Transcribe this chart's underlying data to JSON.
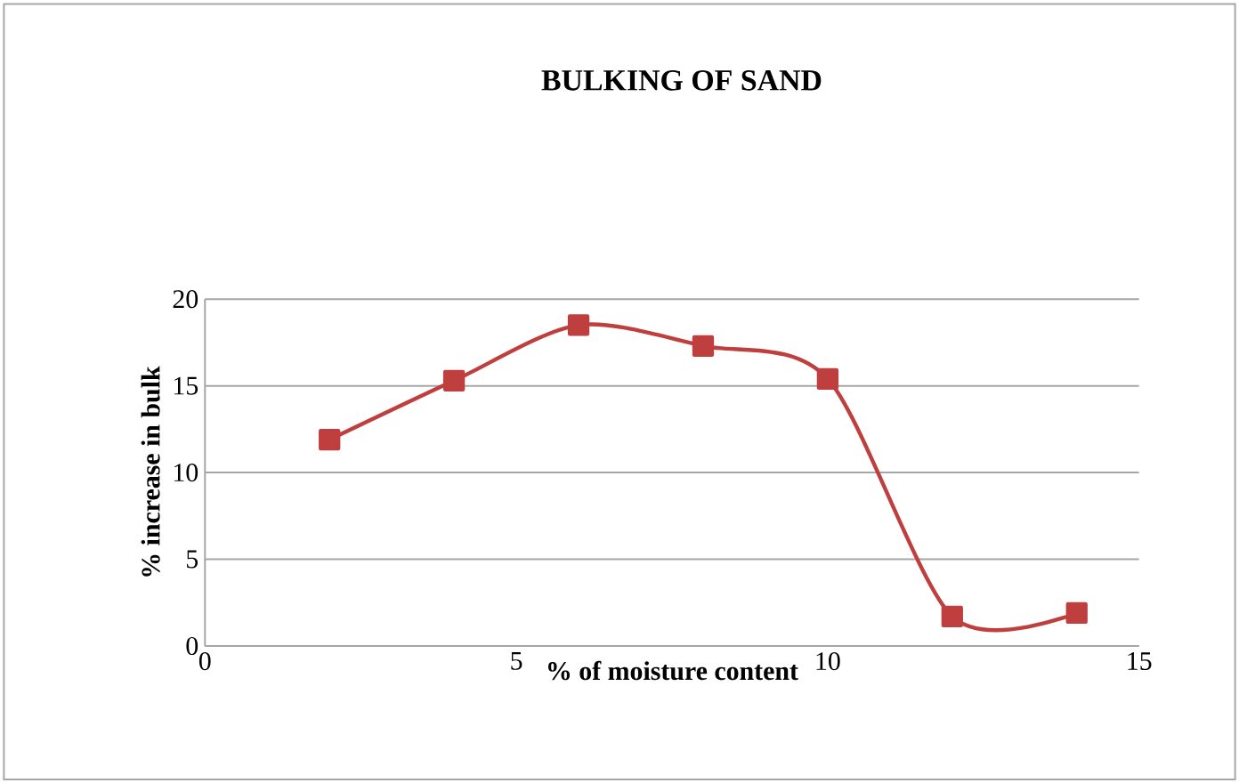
{
  "chart_data": {
    "type": "line",
    "title": "BULKING OF SAND",
    "xlabel": "% of moisture content",
    "ylabel": "%  increase in bulk",
    "x": [
      2,
      4,
      6,
      8,
      10,
      12,
      14
    ],
    "series": [
      {
        "color": "#bf3f3f",
        "values": [
          11.9,
          15.3,
          18.5,
          17.3,
          15.4,
          1.7,
          1.9
        ]
      }
    ],
    "xlim": [
      0,
      15
    ],
    "ylim": [
      0,
      20
    ],
    "xticks": [
      0,
      5,
      10,
      15
    ],
    "yticks": [
      0,
      5,
      10,
      15,
      20
    ],
    "grid": "y",
    "marker": "square",
    "line_style": "solid"
  }
}
